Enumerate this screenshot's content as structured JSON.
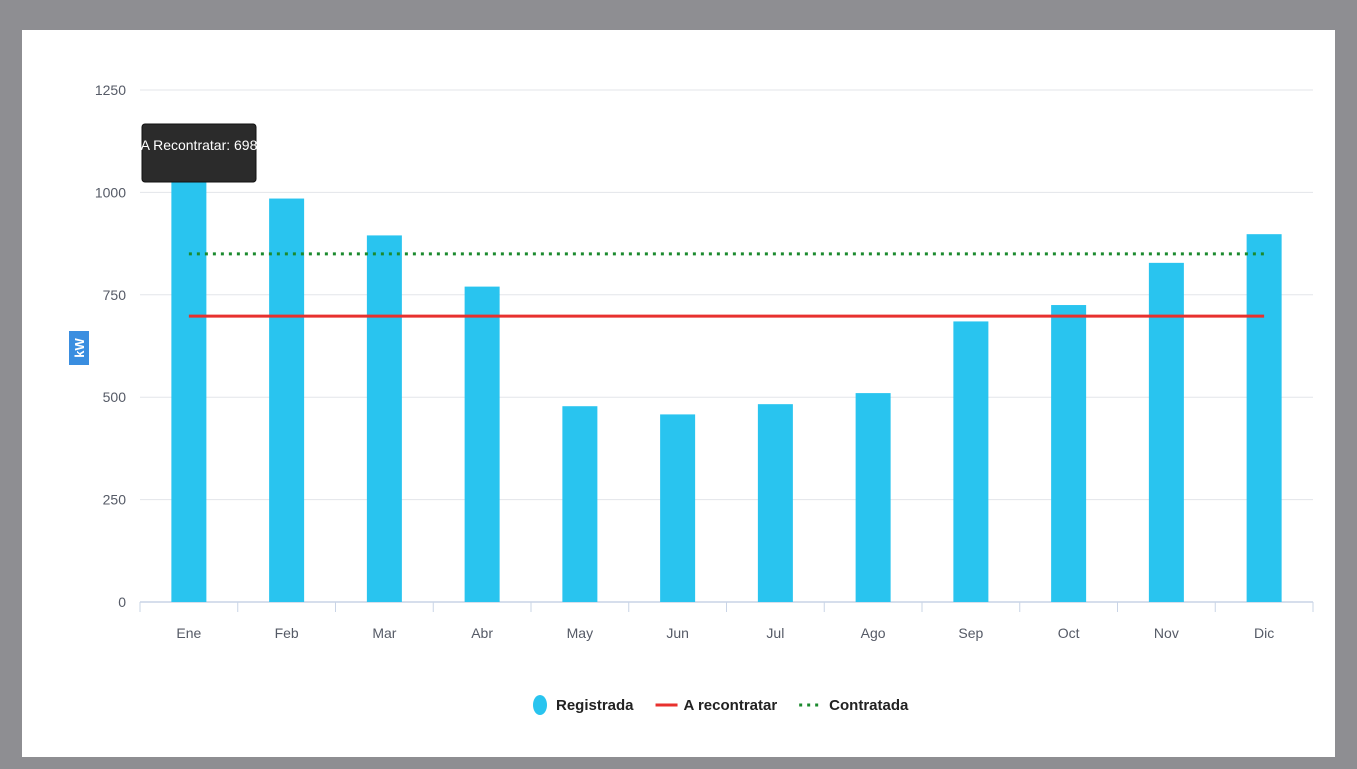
{
  "chart_data": {
    "type": "bar",
    "categories": [
      "Ene",
      "Feb",
      "Mar",
      "Abr",
      "May",
      "Jun",
      "Jul",
      "Ago",
      "Sep",
      "Oct",
      "Nov",
      "Dic"
    ],
    "series": [
      {
        "name": "Registrada",
        "kind": "bar",
        "color": "#29c4ef",
        "values": [
          1040,
          985,
          895,
          770,
          478,
          458,
          483,
          510,
          685,
          725,
          828,
          898
        ]
      },
      {
        "name": "A recontratar",
        "kind": "line",
        "style": "solid",
        "color": "#e8312e",
        "values": [
          698,
          698,
          698,
          698,
          698,
          698,
          698,
          698,
          698,
          698,
          698,
          698
        ]
      },
      {
        "name": "Contratada",
        "kind": "line",
        "style": "dotted",
        "color": "#1b8a2e",
        "values": [
          850,
          850,
          850,
          850,
          850,
          850,
          850,
          850,
          850,
          850,
          850,
          850
        ]
      }
    ],
    "ylabel": "kW",
    "ylim": [
      0,
      1250
    ],
    "yticks": [
      0,
      250,
      500,
      750,
      1000,
      1250
    ],
    "grid": true,
    "legend_position": "bottom-center",
    "tooltip": {
      "text": "A Recontratar: 698"
    }
  }
}
